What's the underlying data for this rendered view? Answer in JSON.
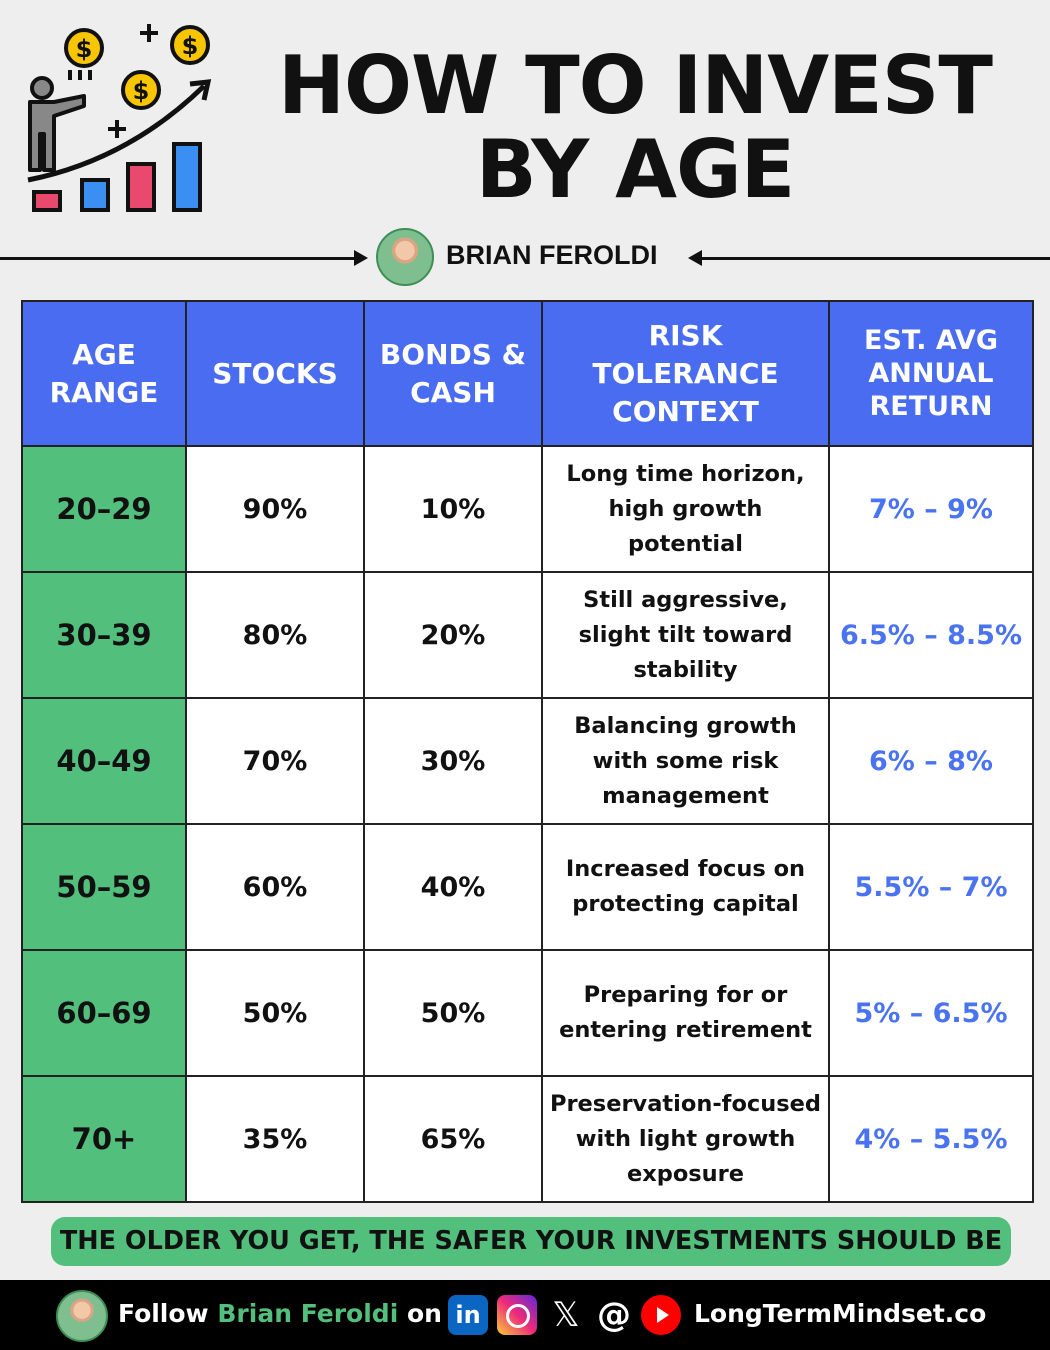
{
  "title": {
    "line1": "HOW TO INVEST",
    "line2": "BY AGE"
  },
  "author": "BRIAN FEROLDI",
  "table": {
    "headers": {
      "age_range": "AGE RANGE",
      "stocks": "STOCKS",
      "bonds_cash": "BONDS & CASH",
      "risk": "RISK TOLERANCE CONTEXT",
      "return": "EST. AVG ANNUAL RETURN"
    },
    "rows": [
      {
        "age": "20–29",
        "stocks": "90%",
        "bonds": "10%",
        "context": "Long time horizon, high growth potential",
        "ret": "7% – 9%"
      },
      {
        "age": "30–39",
        "stocks": "80%",
        "bonds": "20%",
        "context": "Still aggressive, slight tilt toward stability",
        "ret": "6.5% – 8.5%"
      },
      {
        "age": "40–49",
        "stocks": "70%",
        "bonds": "30%",
        "context": "Balancing growth with some risk management",
        "ret": "6% – 8%"
      },
      {
        "age": "50–59",
        "stocks": "60%",
        "bonds": "40%",
        "context": "Increased focus on protecting capital",
        "ret": "5.5% – 7%"
      },
      {
        "age": "60–69",
        "stocks": "50%",
        "bonds": "50%",
        "context": "Preparing for or entering retirement",
        "ret": "5% – 6.5%"
      },
      {
        "age": "70+",
        "stocks": "35%",
        "bonds": "65%",
        "context": "Preservation-focused with light growth exposure",
        "ret": "4% – 5.5%"
      }
    ]
  },
  "tagline": "THE OLDER YOU GET, THE SAFER YOUR INVESTMENTS SHOULD BE",
  "footer": {
    "follow_prefix": "Follow",
    "follow_name": "Brian Feroldi",
    "follow_suffix": "on",
    "linkedin_glyph": "in",
    "x_glyph": "𝕏",
    "threads_glyph": "@",
    "website": "LongTermMindset.co",
    "icons": [
      "linkedin-icon",
      "instagram-icon",
      "x-icon",
      "threads-icon",
      "youtube-icon"
    ]
  },
  "colors": {
    "header_blue": "#4a6cf0",
    "age_green": "#52bf7d",
    "return_blue": "#4a73f0",
    "footer_bg": "#000000"
  }
}
